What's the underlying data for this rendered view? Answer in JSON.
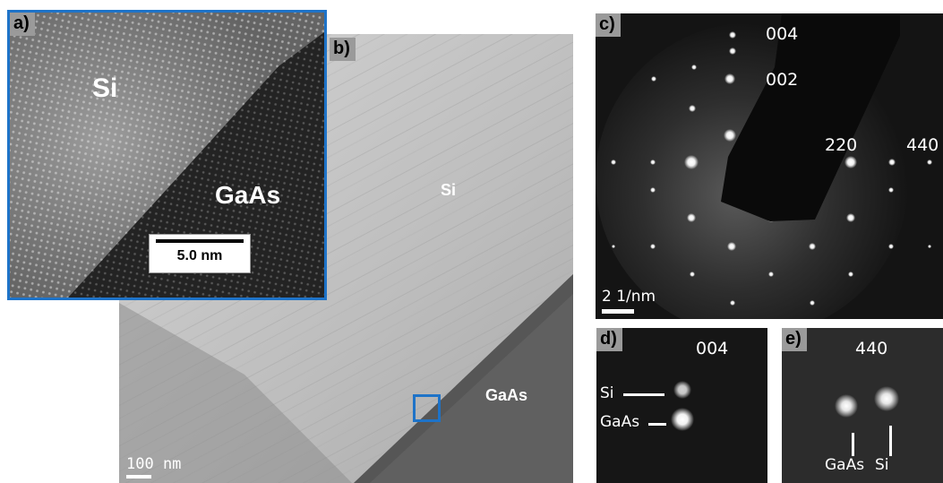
{
  "panels": {
    "a": {
      "label": "a)",
      "materials": {
        "top": "Si",
        "bottom": "GaAs"
      },
      "scalebar": "5.0 nm",
      "frame_color": "#1e73c8"
    },
    "b": {
      "label": "b)",
      "materials": {
        "top": "Si",
        "bottom": "GaAs"
      },
      "scalebar": "100 nm",
      "roi_color": "#1e73c8"
    },
    "c": {
      "label": "c)",
      "indices": {
        "i004": "004",
        "i002": "002",
        "i220": "220",
        "i440": "440"
      },
      "scalebar": "2 1/nm"
    },
    "d": {
      "label": "d)",
      "index": "004",
      "spot_labels": {
        "si": "Si",
        "gaas": "GaAs"
      }
    },
    "e": {
      "label": "e)",
      "index": "440",
      "spot_labels": {
        "gaas": "GaAs",
        "si": "Si"
      }
    }
  }
}
